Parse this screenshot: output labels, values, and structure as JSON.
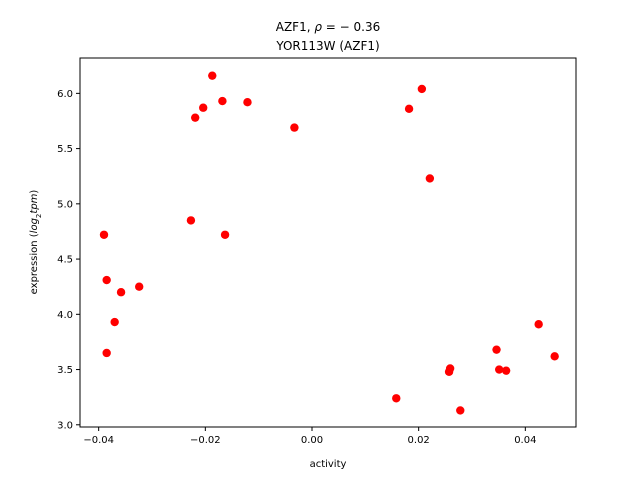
{
  "chart_data": {
    "type": "scatter",
    "title_line1_prefix": "AZF1, ",
    "title_line1_rho": "ρ",
    "title_line1_suffix": " = − 0.36",
    "title_line2": "YOR113W (AZF1)",
    "xlabel": "activity",
    "ylabel_prefix": "expression (",
    "ylabel_math": "log",
    "ylabel_sub": "2",
    "ylabel_math2": "tpm",
    "ylabel_suffix": ")",
    "xlim": [
      -0.0435,
      0.0495
    ],
    "ylim": [
      2.98,
      6.32
    ],
    "xticks": [
      -0.04,
      -0.02,
      0.0,
      0.02,
      0.04
    ],
    "xtick_labels": [
      "−0.04",
      "−0.02",
      "0.00",
      "0.02",
      "0.04"
    ],
    "yticks": [
      3.0,
      3.5,
      4.0,
      4.5,
      5.0,
      5.5,
      6.0
    ],
    "ytick_labels": [
      "3.0",
      "3.5",
      "4.0",
      "4.5",
      "5.0",
      "5.5",
      "6.0"
    ],
    "grid": false,
    "marker_color": "#ff0000",
    "points": [
      {
        "x": -0.039,
        "y": 4.72
      },
      {
        "x": -0.0385,
        "y": 4.31
      },
      {
        "x": -0.0385,
        "y": 3.65
      },
      {
        "x": -0.037,
        "y": 3.93
      },
      {
        "x": -0.0358,
        "y": 4.2
      },
      {
        "x": -0.0324,
        "y": 4.25
      },
      {
        "x": -0.0227,
        "y": 4.85
      },
      {
        "x": -0.0219,
        "y": 5.78
      },
      {
        "x": -0.0204,
        "y": 5.87
      },
      {
        "x": -0.0187,
        "y": 6.16
      },
      {
        "x": -0.0168,
        "y": 5.93
      },
      {
        "x": -0.0163,
        "y": 4.72
      },
      {
        "x": -0.0121,
        "y": 5.92
      },
      {
        "x": -0.0033,
        "y": 5.69
      },
      {
        "x": 0.0158,
        "y": 3.24
      },
      {
        "x": 0.0182,
        "y": 5.86
      },
      {
        "x": 0.0206,
        "y": 6.04
      },
      {
        "x": 0.0221,
        "y": 5.23
      },
      {
        "x": 0.0257,
        "y": 3.48
      },
      {
        "x": 0.0259,
        "y": 3.51
      },
      {
        "x": 0.0278,
        "y": 3.13
      },
      {
        "x": 0.0346,
        "y": 3.68
      },
      {
        "x": 0.0351,
        "y": 3.5
      },
      {
        "x": 0.0364,
        "y": 3.49
      },
      {
        "x": 0.0425,
        "y": 3.91
      },
      {
        "x": 0.0455,
        "y": 3.62
      }
    ]
  }
}
